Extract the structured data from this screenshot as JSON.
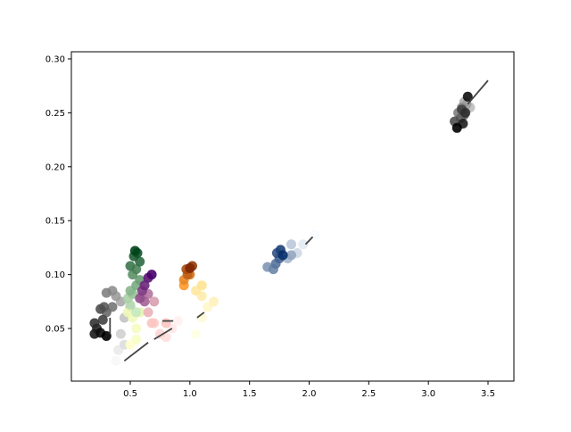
{
  "chart_data": {
    "type": "scatter",
    "title": "",
    "xlabel": "",
    "ylabel": "",
    "xlim": [
      0.006,
      3.717
    ],
    "ylim": [
      0.0012,
      0.3066
    ],
    "xticks": [
      "0.5",
      "1.0",
      "1.5",
      "2.0",
      "2.5",
      "3.0",
      "3.5"
    ],
    "xtick_values": [
      0.5,
      1.0,
      1.5,
      2.0,
      2.5,
      3.0,
      3.5
    ],
    "yticks": [
      "0.05",
      "0.10",
      "0.15",
      "0.20",
      "0.25",
      "0.30"
    ],
    "ytick_values": [
      0.05,
      0.1,
      0.15,
      0.2,
      0.25,
      0.3
    ],
    "grid": false,
    "series": [
      {
        "cmap": [
          "#f7f7f7",
          "#000000"
        ],
        "points": [
          [
            0.38,
            0.02
          ],
          [
            0.4,
            0.03
          ],
          [
            0.45,
            0.035
          ],
          [
            0.42,
            0.045
          ],
          [
            0.45,
            0.06
          ],
          [
            0.5,
            0.07
          ],
          [
            0.42,
            0.075
          ],
          [
            0.38,
            0.08
          ],
          [
            0.35,
            0.085
          ],
          [
            0.3,
            0.083
          ],
          [
            0.35,
            0.07
          ],
          [
            0.3,
            0.065
          ],
          [
            0.28,
            0.07
          ],
          [
            0.25,
            0.068
          ],
          [
            0.27,
            0.058
          ],
          [
            0.2,
            0.055
          ],
          [
            0.22,
            0.05
          ],
          [
            0.2,
            0.045
          ],
          [
            0.25,
            0.046
          ],
          [
            0.3,
            0.043
          ]
        ]
      },
      {
        "cmap": [
          "#ffffcc",
          "#e8f5b0"
        ],
        "points": [
          [
            0.5,
            0.035
          ],
          [
            0.55,
            0.04
          ],
          [
            0.55,
            0.05
          ],
          [
            0.52,
            0.06
          ],
          [
            0.48,
            0.065
          ],
          [
            0.58,
            0.065
          ]
        ]
      },
      {
        "cmap": [
          "#c7e9c0",
          "#00441b"
        ],
        "points": [
          [
            0.55,
            0.065
          ],
          [
            0.5,
            0.072
          ],
          [
            0.48,
            0.078
          ],
          [
            0.52,
            0.082
          ],
          [
            0.5,
            0.085
          ],
          [
            0.55,
            0.09
          ],
          [
            0.58,
            0.095
          ],
          [
            0.52,
            0.1
          ],
          [
            0.55,
            0.105
          ],
          [
            0.5,
            0.108
          ],
          [
            0.58,
            0.112
          ],
          [
            0.53,
            0.117
          ],
          [
            0.56,
            0.12
          ],
          [
            0.54,
            0.122
          ]
        ]
      },
      {
        "cmap": [
          "#fff0f0",
          "#fcc5c0"
        ],
        "points": [
          [
            0.9,
            0.057
          ],
          [
            0.85,
            0.05
          ],
          [
            0.8,
            0.042
          ],
          [
            0.75,
            0.045
          ],
          [
            0.7,
            0.055
          ],
          [
            0.8,
            0.055
          ]
        ]
      },
      {
        "cmap": [
          "#fcc5c0",
          "#49006a"
        ],
        "points": [
          [
            0.68,
            0.055
          ],
          [
            0.65,
            0.065
          ],
          [
            0.7,
            0.075
          ],
          [
            0.6,
            0.08
          ],
          [
            0.65,
            0.082
          ],
          [
            0.62,
            0.075
          ],
          [
            0.58,
            0.078
          ],
          [
            0.6,
            0.085
          ],
          [
            0.62,
            0.09
          ],
          [
            0.65,
            0.097
          ],
          [
            0.68,
            0.1
          ]
        ]
      },
      {
        "cmap": [
          "#ffffe5",
          "#fee391"
        ],
        "points": [
          [
            1.05,
            0.045
          ],
          [
            1.1,
            0.06
          ],
          [
            1.15,
            0.07
          ],
          [
            1.2,
            0.075
          ],
          [
            1.1,
            0.08
          ],
          [
            1.05,
            0.085
          ],
          [
            1.1,
            0.09
          ]
        ]
      },
      {
        "cmap": [
          "#fe9929",
          "#7f2704"
        ],
        "points": [
          [
            0.95,
            0.09
          ],
          [
            0.95,
            0.095
          ],
          [
            1.0,
            0.1
          ],
          [
            0.98,
            0.1
          ],
          [
            0.97,
            0.105
          ],
          [
            1.02,
            0.108
          ],
          [
            1.0,
            0.106
          ]
        ]
      },
      {
        "cmap": [
          "#f7fbff",
          "#08306b"
        ],
        "points": [
          [
            2.05,
            0.137
          ],
          [
            1.95,
            0.128
          ],
          [
            1.9,
            0.12
          ],
          [
            1.85,
            0.128
          ],
          [
            1.82,
            0.115
          ],
          [
            1.85,
            0.118
          ],
          [
            1.65,
            0.107
          ],
          [
            1.7,
            0.105
          ],
          [
            1.72,
            0.11
          ],
          [
            1.75,
            0.115
          ],
          [
            1.73,
            0.12
          ],
          [
            1.76,
            0.123
          ],
          [
            1.78,
            0.118
          ]
        ]
      },
      {
        "cmap": [
          "#bdbdbd",
          "#000000"
        ],
        "points": [
          [
            3.35,
            0.255
          ],
          [
            3.3,
            0.26
          ],
          [
            3.32,
            0.258
          ],
          [
            3.28,
            0.255
          ],
          [
            3.25,
            0.25
          ],
          [
            3.3,
            0.248
          ],
          [
            3.27,
            0.245
          ],
          [
            3.22,
            0.242
          ],
          [
            3.28,
            0.253
          ],
          [
            3.31,
            0.25
          ],
          [
            3.29,
            0.24
          ],
          [
            3.33,
            0.265
          ],
          [
            3.24,
            0.236
          ]
        ]
      }
    ],
    "lines": [
      [
        [
          0.45,
          0.02
        ],
        [
          0.65,
          0.037
        ]
      ],
      [
        [
          0.7,
          0.04
        ],
        [
          0.85,
          0.05
        ]
      ],
      [
        [
          0.77,
          0.057
        ],
        [
          0.86,
          0.057
        ]
      ],
      [
        [
          1.06,
          0.06
        ],
        [
          1.12,
          0.065
        ]
      ],
      [
        [
          0.33,
          0.045
        ],
        [
          0.33,
          0.06
        ]
      ],
      [
        [
          1.97,
          0.128
        ],
        [
          2.03,
          0.135
        ]
      ],
      [
        [
          3.33,
          0.258
        ],
        [
          3.5,
          0.28
        ]
      ]
    ],
    "line_color": "#444444"
  }
}
